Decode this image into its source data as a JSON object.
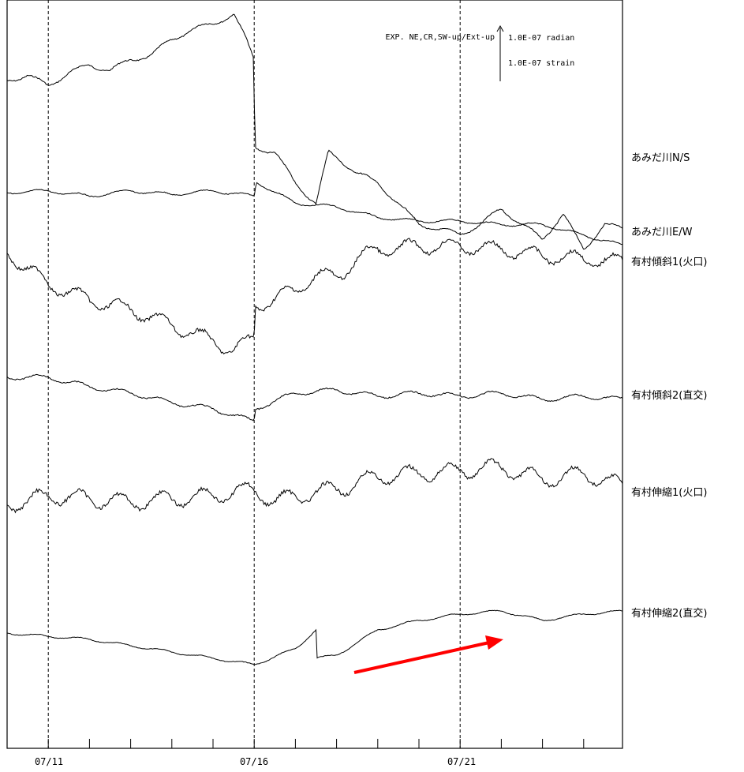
{
  "chart_data": {
    "type": "line",
    "x_unit": "date",
    "x_range": [
      "07/10",
      "07/25"
    ],
    "x_tick_labels": [
      "07/11",
      "07/16",
      "07/21"
    ],
    "x_tick_label_dates": [
      "07/11",
      "07/16",
      "07/21"
    ],
    "y_axis": "none",
    "grid": "dashed vertical lines at labelled dates",
    "legend": {
      "header": "EXP. NE,CR,SW-up/Ext-up",
      "scale_tilt": "1.0E-07 radian",
      "scale_strain": "1.0E-07 strain",
      "placement": "top-right"
    },
    "series": [
      {
        "name": "あみだ川N/S",
        "points": [
          [
            0,
            0
          ],
          [
            0.5,
            0.1
          ],
          [
            1,
            -0.1
          ],
          [
            1.5,
            0.15
          ],
          [
            2,
            0.3
          ],
          [
            2.5,
            0.2
          ],
          [
            3,
            0.4
          ],
          [
            3.5,
            0.5
          ],
          [
            4,
            0.8
          ],
          [
            4.5,
            1.0
          ],
          [
            5,
            1.1
          ],
          [
            5.5,
            1.3
          ],
          [
            5.8,
            0.8
          ],
          [
            6,
            0.4
          ],
          [
            6.01,
            -1.3
          ],
          [
            6.5,
            -1.4
          ],
          [
            7,
            -2.0
          ],
          [
            7.5,
            -2.4
          ],
          [
            7.8,
            -1.4
          ],
          [
            8,
            -1.5
          ],
          [
            8.5,
            -1.8
          ],
          [
            9,
            -2.0
          ],
          [
            9.5,
            -2.4
          ],
          [
            10,
            -2.8
          ],
          [
            10.5,
            -2.9
          ],
          [
            11,
            -3.0
          ],
          [
            11.5,
            -2.8
          ],
          [
            12,
            -2.5
          ],
          [
            12.5,
            -2.8
          ],
          [
            13,
            -3.1
          ],
          [
            13.5,
            -2.6
          ],
          [
            14,
            -3.3
          ],
          [
            14.5,
            -2.8
          ],
          [
            15,
            -2.9
          ]
        ]
      },
      {
        "name": "あみだ川E/W",
        "points": [
          [
            0,
            0
          ],
          [
            1,
            0.05
          ],
          [
            2,
            -0.1
          ],
          [
            3,
            0.05
          ],
          [
            4,
            -0.05
          ],
          [
            5,
            0.05
          ],
          [
            6,
            -0.1
          ],
          [
            6.05,
            0.3
          ],
          [
            7,
            -0.3
          ],
          [
            8,
            -0.4
          ],
          [
            9,
            -0.7
          ],
          [
            10,
            -0.8
          ],
          [
            11,
            -0.8
          ],
          [
            12,
            -0.9
          ],
          [
            13,
            -0.9
          ],
          [
            14,
            -1.2
          ],
          [
            15,
            -1.5
          ]
        ]
      },
      {
        "name": "有村傾斜1(火口)",
        "points": [
          [
            0,
            0
          ],
          [
            1,
            -1.0
          ],
          [
            2,
            -1.5
          ],
          [
            3,
            -1.8
          ],
          [
            4,
            -2.3
          ],
          [
            5,
            -2.8
          ],
          [
            5.5,
            -3.1
          ],
          [
            6,
            -2.7
          ],
          [
            6.02,
            -1.7
          ],
          [
            7,
            -1.2
          ],
          [
            7.5,
            -0.7
          ],
          [
            8,
            -0.8
          ],
          [
            8.5,
            -0.2
          ],
          [
            9,
            0.1
          ],
          [
            10,
            0.2
          ],
          [
            11,
            0.2
          ],
          [
            12,
            0.1
          ],
          [
            13,
            -0.1
          ],
          [
            14,
            -0.2
          ],
          [
            15,
            -0.3
          ]
        ]
      },
      {
        "name": "有村傾斜2(直交)",
        "points": [
          [
            0,
            0
          ],
          [
            1,
            0.0
          ],
          [
            2,
            -0.3
          ],
          [
            3,
            -0.5
          ],
          [
            4,
            -0.8
          ],
          [
            5,
            -1.0
          ],
          [
            6,
            -1.4
          ],
          [
            6.02,
            -1.0
          ],
          [
            7,
            -0.5
          ],
          [
            8,
            -0.4
          ],
          [
            9,
            -0.6
          ],
          [
            10,
            -0.5
          ],
          [
            11,
            -0.6
          ],
          [
            12,
            -0.5
          ],
          [
            13,
            -0.7
          ],
          [
            14,
            -0.6
          ],
          [
            15,
            -0.7
          ]
        ]
      },
      {
        "name": "有村伸縮1(火口)",
        "points": [
          [
            0,
            0
          ],
          [
            1,
            0.3
          ],
          [
            2,
            0.2
          ],
          [
            3,
            0.1
          ],
          [
            4,
            0.2
          ],
          [
            5,
            0.3
          ],
          [
            6,
            0.5
          ],
          [
            6.5,
            0.1
          ],
          [
            7,
            0.3
          ],
          [
            8,
            0.5
          ],
          [
            9,
            0.9
          ],
          [
            10,
            1.0
          ],
          [
            11,
            1.1
          ],
          [
            12,
            1.2
          ],
          [
            13,
            0.8
          ],
          [
            14,
            1.0
          ],
          [
            15,
            0.6
          ]
        ]
      },
      {
        "name": "有村伸縮2(直交)",
        "points": [
          [
            0,
            0
          ],
          [
            1,
            -0.1
          ],
          [
            2,
            -0.2
          ],
          [
            3,
            -0.4
          ],
          [
            4,
            -0.6
          ],
          [
            5,
            -0.8
          ],
          [
            6,
            -1.0
          ],
          [
            7,
            -0.5
          ],
          [
            7.5,
            0.1
          ],
          [
            7.51,
            -0.8
          ],
          [
            8,
            -0.7
          ],
          [
            8.5,
            -0.3
          ],
          [
            9,
            0.1
          ],
          [
            10,
            0.4
          ],
          [
            11,
            0.6
          ],
          [
            12,
            0.7
          ],
          [
            13,
            0.4
          ],
          [
            14,
            0.6
          ],
          [
            15,
            0.7
          ]
        ]
      }
    ],
    "annotation": {
      "type": "arrow",
      "color": "#ff0000",
      "from": [
        8,
        "low"
      ],
      "to": [
        11.8,
        "high"
      ]
    }
  }
}
